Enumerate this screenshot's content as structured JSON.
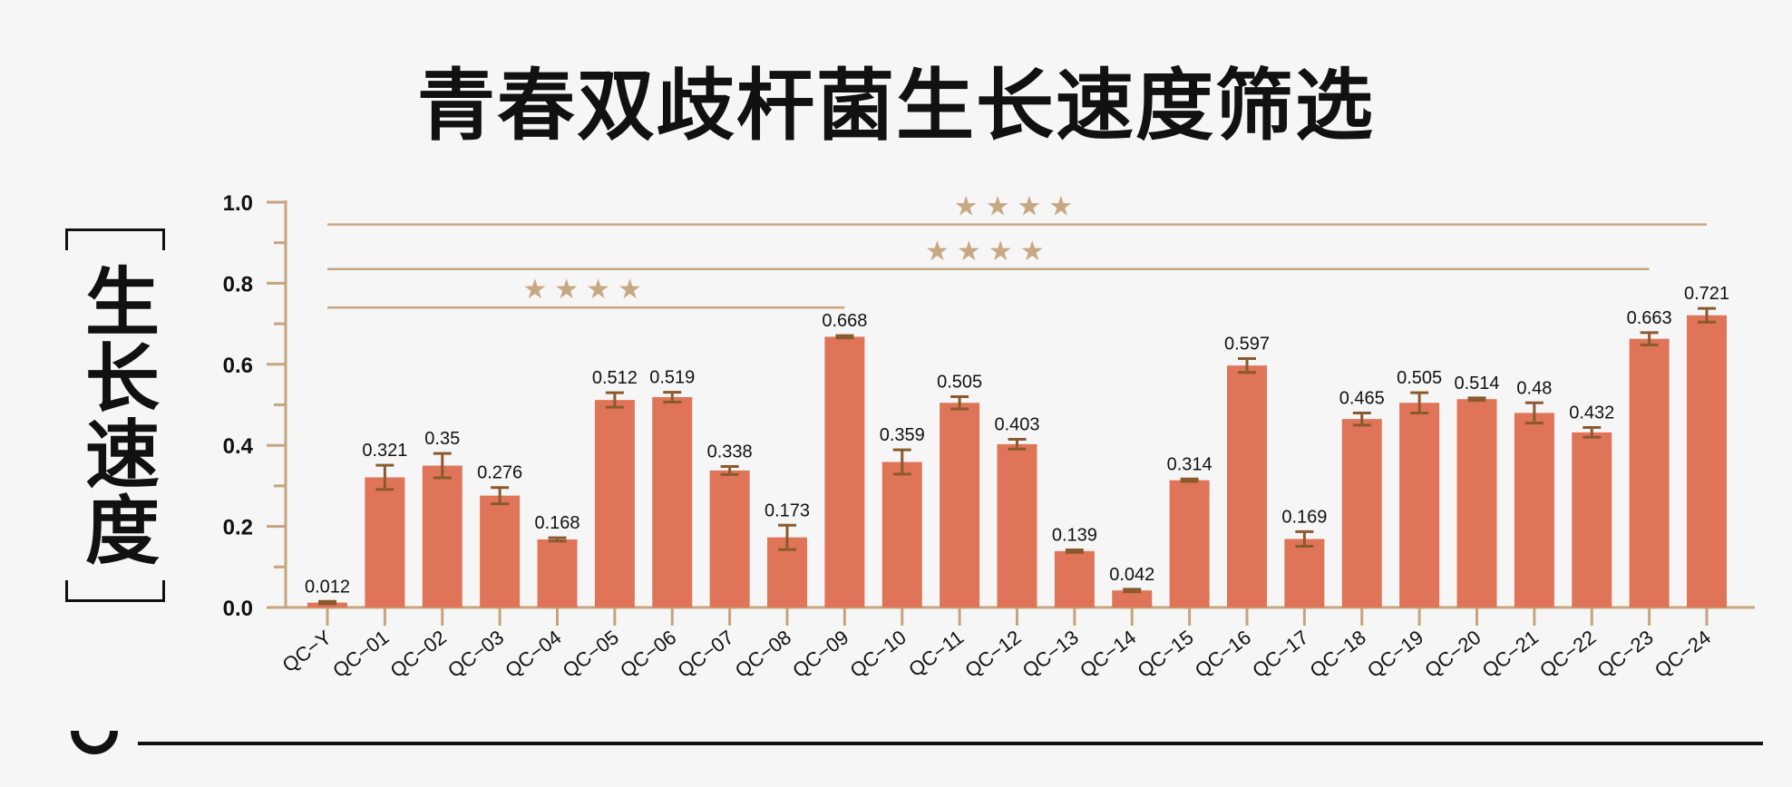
{
  "chart_data": {
    "type": "bar",
    "title": "青春双歧杆菌生长速度筛选",
    "ylabel": "生长速度",
    "xlabel": "",
    "ylim": [
      0,
      1.0
    ],
    "yticks": [
      "0.0",
      "0.2",
      "0.4",
      "0.6",
      "0.8",
      "1.0"
    ],
    "grid": false,
    "categories": [
      "QC−Y",
      "QC−01",
      "QC−02",
      "QC−03",
      "QC−04",
      "QC−05",
      "QC−06",
      "QC−07",
      "QC−08",
      "QC−09",
      "QC−10",
      "QC−11",
      "QC−12",
      "QC−13",
      "QC−14",
      "QC−15",
      "QC−16",
      "QC−17",
      "QC−18",
      "QC−19",
      "QC−20",
      "QC−21",
      "QC−22",
      "QC−23",
      "QC−24"
    ],
    "values": [
      0.012,
      0.321,
      0.35,
      0.276,
      0.168,
      0.512,
      0.519,
      0.338,
      0.173,
      0.668,
      0.359,
      0.505,
      0.403,
      0.139,
      0.042,
      0.314,
      0.597,
      0.169,
      0.465,
      0.505,
      0.514,
      0.48,
      0.432,
      0.663,
      0.721
    ],
    "value_labels": [
      "0.012",
      "0.321",
      "0.35",
      "0.276",
      "0.168",
      "0.512",
      "0.519",
      "0.338",
      "0.173",
      "0.668",
      "0.359",
      "0.505",
      "0.403",
      "0.139",
      "0.042",
      "0.314",
      "0.597",
      "0.169",
      "0.465",
      "0.505",
      "0.514",
      "0.48",
      "0.432",
      "0.663",
      "0.721"
    ],
    "errors": [
      0.003,
      0.03,
      0.03,
      0.02,
      0.004,
      0.018,
      0.012,
      0.01,
      0.03,
      0.003,
      0.03,
      0.015,
      0.012,
      0.003,
      0.003,
      0.003,
      0.017,
      0.018,
      0.015,
      0.025,
      0.003,
      0.025,
      0.012,
      0.015,
      0.017
    ],
    "significance": [
      {
        "from": "QC−Y",
        "to": "QC−09",
        "y": 0.74,
        "label": "★★★★"
      },
      {
        "from": "QC−Y",
        "to": "QC−23",
        "y": 0.835,
        "label": "★★★★"
      },
      {
        "from": "QC−Y",
        "to": "QC−24",
        "y": 0.945,
        "label": "★★★★"
      }
    ],
    "colors": {
      "bar": "#e07459",
      "error": "#8a5a2e",
      "axis": "#c6a47c",
      "significance": "#c8a882",
      "text": "#111111"
    }
  }
}
